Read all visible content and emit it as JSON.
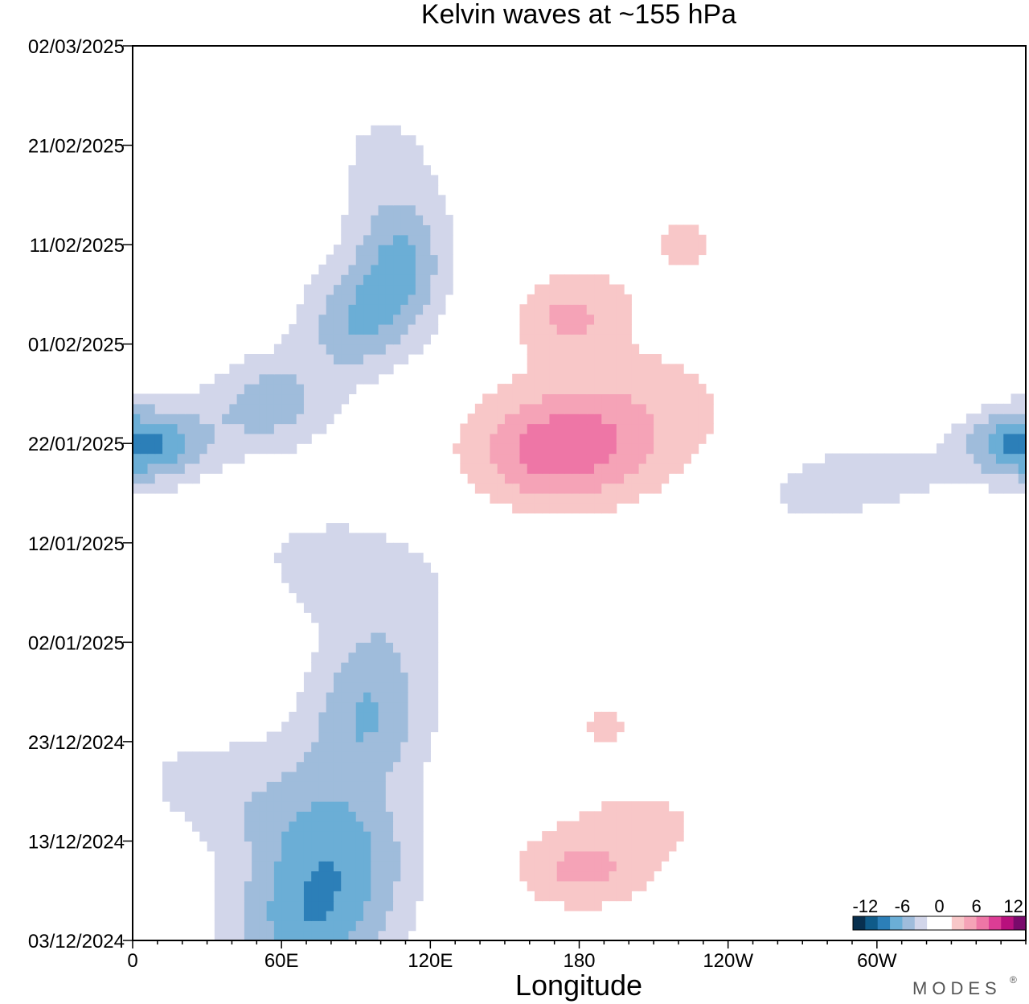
{
  "chart_data": {
    "type": "heatmap",
    "title": "Kelvin waves at ~155 hPa",
    "xlabel": "Longitude",
    "ylabel": "",
    "x_ticks": [
      "0",
      "60E",
      "120E",
      "180",
      "120W",
      "60W"
    ],
    "x_tick_values": [
      0,
      60,
      120,
      180,
      240,
      300
    ],
    "xlim": [
      0,
      360
    ],
    "y_ticks": [
      "02/03/2025",
      "21/02/2025",
      "11/02/2025",
      "01/02/2025",
      "22/01/2025",
      "12/01/2025",
      "02/01/2025",
      "23/12/2024",
      "13/12/2024",
      "03/12/2024"
    ],
    "y_tick_values": [
      90,
      80,
      70,
      60,
      50,
      40,
      30,
      20,
      10,
      0
    ],
    "ylim": [
      0,
      90
    ],
    "y_units": "days since 03/12/2024",
    "colorbar": {
      "ticks": [
        "-12",
        "-6",
        "0",
        "6",
        "12"
      ],
      "tick_values": [
        -12,
        -6,
        0,
        6,
        12
      ],
      "range": [
        -14,
        14
      ],
      "colors": [
        "#08304f",
        "#0f5b89",
        "#2c7fb8",
        "#6baed6",
        "#9fbcdb",
        "#d2d6ea",
        "#ffffff",
        "#ffffff",
        "#f8c7c8",
        "#f5a3b7",
        "#ee76a6",
        "#dc3d95",
        "#b8107d",
        "#7a0a6b"
      ]
    },
    "features": [
      {
        "value": -4,
        "lon": 68,
        "day": 1,
        "sx": 22,
        "sy": 4
      },
      {
        "value": -3,
        "lon": 75,
        "day": 4,
        "sx": 25,
        "sy": 6
      },
      {
        "value": -4,
        "lon": 85,
        "day": 9,
        "sx": 22,
        "sy": 5
      },
      {
        "value": -2,
        "lon": 60,
        "day": 12,
        "sx": 30,
        "sy": 4
      },
      {
        "value": -2,
        "lon": 30,
        "day": 17,
        "sx": 45,
        "sy": 4
      },
      {
        "value": -3,
        "lon": 92,
        "day": 21,
        "sx": 18,
        "sy": 4
      },
      {
        "value": -4,
        "lon": 98,
        "day": 26,
        "sx": 18,
        "sy": 5
      },
      {
        "value": -2,
        "lon": 102,
        "day": 35,
        "sx": 25,
        "sy": 4
      },
      {
        "value": -2,
        "lon": 75,
        "day": 39,
        "sx": 30,
        "sy": 4
      },
      {
        "value": -5,
        "lon": 10,
        "day": 50,
        "sx": 18,
        "sy": 3
      },
      {
        "value": -5,
        "lon": 55,
        "day": 54,
        "sx": 18,
        "sy": 3.5
      },
      {
        "value": -5,
        "lon": 88,
        "day": 62,
        "sx": 16,
        "sy": 4
      },
      {
        "value": -6,
        "lon": 108,
        "day": 68,
        "sx": 14,
        "sy": 5
      },
      {
        "value": -2,
        "lon": 100,
        "day": 80,
        "sx": 25,
        "sy": 6
      },
      {
        "value": -1,
        "lon": 25,
        "day": 88,
        "sx": 25,
        "sy": 3
      },
      {
        "value": -5,
        "lon": 355,
        "day": 50,
        "sx": 16,
        "sy": 2.5
      },
      {
        "value": -3,
        "lon": 300,
        "day": 47,
        "sx": 25,
        "sy": 2.5
      },
      {
        "value": -2,
        "lon": 270,
        "day": 44,
        "sx": 20,
        "sy": 2.5
      },
      {
        "value": -1,
        "lon": 270,
        "day": 28,
        "sx": 20,
        "sy": 2
      },
      {
        "value": 4,
        "lon": 180,
        "day": 7,
        "sx": 20,
        "sy": 3
      },
      {
        "value": 2,
        "lon": 210,
        "day": 12,
        "sx": 30,
        "sy": 4
      },
      {
        "value": 2,
        "lon": 190,
        "day": 22,
        "sx": 25,
        "sy": 4
      },
      {
        "value": 1,
        "lon": 340,
        "day": 18,
        "sx": 15,
        "sy": 4
      },
      {
        "value": 1,
        "lon": 230,
        "day": 35,
        "sx": 30,
        "sy": 5
      },
      {
        "value": 6,
        "lon": 170,
        "day": 49,
        "sx": 25,
        "sy": 4
      },
      {
        "value": 3,
        "lon": 200,
        "day": 53,
        "sx": 35,
        "sy": 5
      },
      {
        "value": 4,
        "lon": 175,
        "day": 63,
        "sx": 15,
        "sy": 3
      },
      {
        "value": 2,
        "lon": 220,
        "day": 70,
        "sx": 25,
        "sy": 6
      },
      {
        "value": 2,
        "lon": 320,
        "day": 70,
        "sx": 40,
        "sy": 6
      },
      {
        "value": 1,
        "lon": 255,
        "day": 82,
        "sx": 20,
        "sy": 4
      }
    ]
  },
  "branding": {
    "logo_text": "MODES",
    "logo_mark": "®"
  }
}
